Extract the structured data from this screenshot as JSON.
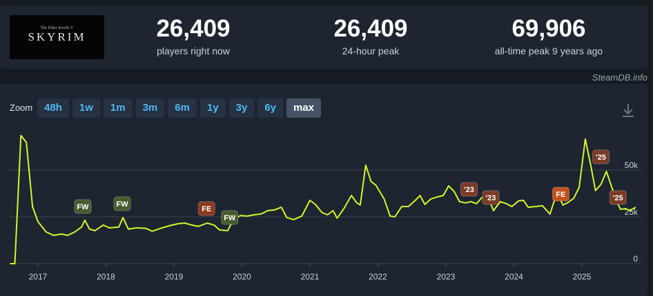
{
  "header": {
    "logo_subtitle": "The Elder Scrolls V",
    "logo_title": "SKYRIM",
    "stats": [
      {
        "value": "26,409",
        "label": "players right now"
      },
      {
        "value": "26,409",
        "label": "24-hour peak"
      },
      {
        "value": "69,906",
        "label": "all-time peak 9 years ago"
      }
    ],
    "watermark": "SteamDB.info"
  },
  "zoom": {
    "label": "Zoom",
    "options": [
      "48h",
      "1w",
      "1m",
      "3m",
      "6m",
      "1y",
      "3y",
      "6y",
      "max"
    ],
    "active_index": 8
  },
  "chart_data": {
    "type": "line",
    "color": "#d4f72a",
    "x": [
      2016.59,
      2016.66,
      2016.75,
      2016.83,
      2016.92,
      2017.0,
      2017.12,
      2017.23,
      2017.34,
      2017.44,
      2017.54,
      2017.64,
      2017.69,
      2017.76,
      2017.84,
      2017.96,
      2018.05,
      2018.19,
      2018.25,
      2018.33,
      2018.45,
      2018.59,
      2018.68,
      2018.8,
      2018.93,
      2019.06,
      2019.16,
      2019.26,
      2019.36,
      2019.49,
      2019.59,
      2019.67,
      2019.79,
      2019.88,
      2019.98,
      2020.08,
      2020.18,
      2020.28,
      2020.38,
      2020.48,
      2020.58,
      2020.66,
      2020.76,
      2020.88,
      2021.0,
      2021.08,
      2021.18,
      2021.26,
      2021.34,
      2021.4,
      2021.5,
      2021.61,
      2021.69,
      2021.74,
      2021.82,
      2021.9,
      2021.97,
      2022.09,
      2022.18,
      2022.25,
      2022.35,
      2022.45,
      2022.55,
      2022.62,
      2022.69,
      2022.78,
      2022.88,
      2022.96,
      2023.04,
      2023.12,
      2023.2,
      2023.29,
      2023.37,
      2023.45,
      2023.53,
      2023.62,
      2023.7,
      2023.8,
      2023.89,
      2023.97,
      2024.07,
      2024.14,
      2024.21,
      2024.32,
      2024.42,
      2024.53,
      2024.6,
      2024.66,
      2024.72,
      2024.8,
      2024.88,
      2024.96,
      2025.05,
      2025.13,
      2025.2,
      2025.28,
      2025.36,
      2025.44,
      2025.51,
      2025.57,
      2025.64,
      2025.71,
      2025.79
    ],
    "values": [
      0,
      0,
      68400,
      64700,
      30500,
      22400,
      16900,
      15100,
      15800,
      15100,
      16900,
      19500,
      23200,
      18400,
      17600,
      20600,
      19100,
      19500,
      24600,
      18400,
      19100,
      18800,
      17300,
      18800,
      20200,
      21300,
      21700,
      20600,
      19900,
      21700,
      20600,
      18000,
      17600,
      23900,
      25700,
      25400,
      26100,
      26500,
      28300,
      28700,
      30100,
      24600,
      23500,
      25400,
      33800,
      31600,
      27200,
      26100,
      28300,
      24300,
      29400,
      36400,
      32400,
      31300,
      52600,
      43800,
      41900,
      34600,
      25400,
      25000,
      30500,
      30500,
      33800,
      36400,
      31600,
      34600,
      35700,
      36400,
      41500,
      38600,
      33100,
      32400,
      33100,
      32000,
      35300,
      35300,
      28300,
      33100,
      32000,
      30500,
      33500,
      33800,
      30100,
      30500,
      30900,
      26500,
      34200,
      36400,
      31300,
      32700,
      34900,
      40800,
      66500,
      52600,
      39000,
      42300,
      49300,
      40800,
      33100,
      29000,
      29400,
      28300,
      30100
    ],
    "xlim": [
      2016.58,
      2025.87
    ],
    "ylim": [
      0,
      73500
    ],
    "xticks": [
      2017,
      2018,
      2019,
      2020,
      2021,
      2022,
      2023,
      2024,
      2025
    ],
    "yticks": [
      0,
      {
        "value": 25000,
        "label": "25k"
      },
      {
        "value": 50000,
        "label": "50k"
      }
    ],
    "grid": true,
    "annotations": [
      {
        "label": "FW",
        "x": 2017.66,
        "y": 30500,
        "color": "#465c2e"
      },
      {
        "label": "FW",
        "x": 2018.24,
        "y": 32000,
        "color": "#465c2e"
      },
      {
        "label": "FE",
        "x": 2019.48,
        "y": 29400,
        "color": "#8a3a1e"
      },
      {
        "label": "FW",
        "x": 2019.82,
        "y": 24600,
        "color": "#465c2e"
      },
      {
        "label": "'23",
        "x": 2023.34,
        "y": 39700,
        "color": "#7a3a25"
      },
      {
        "label": "'23",
        "x": 2023.66,
        "y": 35300,
        "color": "#7a3a25"
      },
      {
        "label": "FE",
        "x": 2024.69,
        "y": 37100,
        "color": "#c0521b"
      },
      {
        "label": "'25",
        "x": 2025.28,
        "y": 57000,
        "color": "#7a3a25"
      },
      {
        "label": "'25",
        "x": 2025.53,
        "y": 35300,
        "color": "#7a3a25"
      }
    ]
  }
}
